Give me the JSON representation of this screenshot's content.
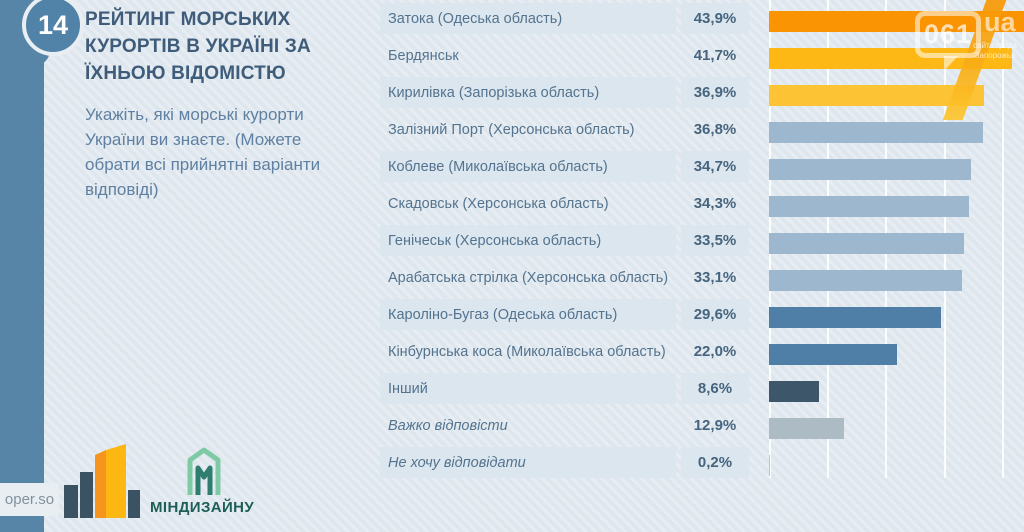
{
  "page": {
    "badge_number": "14",
    "title": "РЕЙТИНГ МОРСЬКИХ\nКУРОРТІВ В УКРАЇНІ ЗА\nЇХНЬОЮ ВІДОМІСТЮ",
    "subtitle": "Укажіть, які морські курорти\nУкраїни ви знаєте. (Можете\nобрати всі прийнятні варіанти\nвідповіді)",
    "footer": {
      "site_label": "oper.so",
      "brand_label": "МІНДИЗАЙНУ"
    },
    "watermark": {
      "bubble_text": "061",
      "tld_text": "ua",
      "tagline_line1": "сайт города",
      "tagline_line2": "Запорожья"
    }
  },
  "colors": {
    "strip_blue": "#5685a8",
    "row_shade": "#dbe6ef",
    "title_text": "#3f5d7a",
    "subtitle_text": "#5f80a2",
    "label_text": "#54738e",
    "percent_text": "#46647e",
    "orange": "#fb9402",
    "amber": "#fdb815",
    "yellow": "#fcc434",
    "light_blue_bar": "#9db8ce",
    "mid_blue_bar": "#4f7ea6",
    "dark_slate_bar": "#3d5669",
    "gray_bar": "#adbbc4"
  },
  "chart_data": {
    "type": "bar",
    "orientation": "horizontal",
    "title": "РЕЙТИНГ МОРСЬКИХ КУРОРТІВ В УКРАЇНІ ЗА ЇХНЬОЮ ВІДОМІСТЮ",
    "question": "Укажіть, які морські курорти України ви знаєте. (Можете обрати всі прийнятні варіанти відповіді)",
    "categories": [
      "Затока (Одеська область)",
      "Бердянськ",
      "Кирилівка (Запорізька область)",
      "Залізний Порт (Херсонська область)",
      "Коблеве (Миколаївська область)",
      "Скадовськ (Херсонська область)",
      "Генічеськ (Херсонська область)",
      "Арабатська стрілка (Херсонська область)",
      "Кароліно-Бугаз (Одеська область)",
      "Кінбурнська коса (Миколаївська область)",
      "Інший",
      "Важко відповісти",
      "Не хочу відповідати"
    ],
    "values": [
      43.9,
      41.7,
      36.9,
      36.8,
      34.7,
      34.3,
      33.5,
      33.1,
      29.6,
      22.0,
      8.6,
      12.9,
      0.2
    ],
    "value_labels": [
      "43,9%",
      "41,7%",
      "36,9%",
      "36,8%",
      "34,7%",
      "34,3%",
      "33,5%",
      "33,1%",
      "29,6%",
      "22,0%",
      "8,6%",
      "12,9%",
      "0,2%"
    ],
    "bar_colors": [
      "#fb9402",
      "#fdb815",
      "#fcc434",
      "#9db8ce",
      "#9db8ce",
      "#9db8ce",
      "#9db8ce",
      "#9db8ce",
      "#4f7ea6",
      "#4f7ea6",
      "#3d5669",
      "#adbbc4",
      "#b9c6cd"
    ],
    "italic_indices": [
      11,
      12
    ],
    "xlabel": "",
    "ylabel": "",
    "xlim": [
      0,
      43.7
    ],
    "gridlines_percent": [
      0,
      10,
      20,
      30,
      40
    ],
    "grid": true,
    "legend": false
  }
}
